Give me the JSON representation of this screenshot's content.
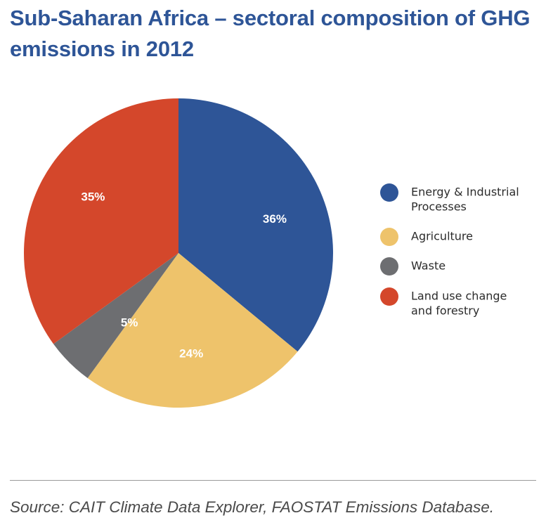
{
  "colors": {
    "title": "#2e5597",
    "energy": "#2e5597",
    "agriculture": "#eec36b",
    "waste": "#6d6e71",
    "land_use": "#d4472b"
  },
  "chart_data": {
    "type": "pie",
    "title": "Sub-Saharan Africa – sectoral composition of GHG emissions in 2012",
    "slices": [
      {
        "name": "Energy & Industrial Processes",
        "legend_lines": [
          "Energy & Industrial",
          "Processes"
        ],
        "value": 36,
        "label": "36%",
        "color": "#2e5597"
      },
      {
        "name": "Agriculture",
        "legend_lines": [
          "Agriculture"
        ],
        "value": 24,
        "label": "24%",
        "color": "#eec36b"
      },
      {
        "name": "Waste",
        "legend_lines": [
          "Waste"
        ],
        "value": 5,
        "label": "5%",
        "color": "#6d6e71"
      },
      {
        "name": "Land use change and forestry",
        "legend_lines": [
          "Land use change",
          "and forestry"
        ],
        "value": 35,
        "label": "35%",
        "color": "#d4472b"
      }
    ],
    "start_angle_deg": 0,
    "direction": "clockwise",
    "legend_position": "right"
  },
  "source": "Source: CAIT Climate Data Explorer, FAOSTAT Emissions Database."
}
